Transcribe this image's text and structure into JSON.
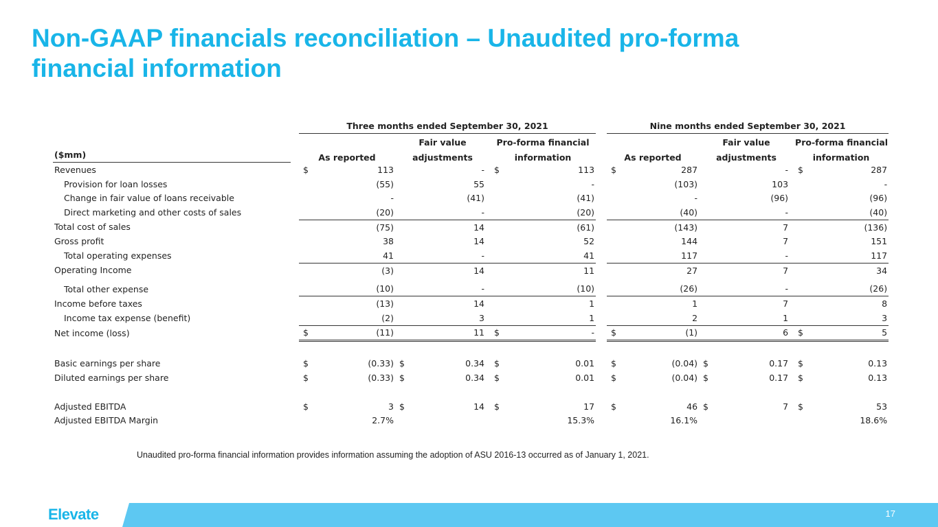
{
  "slide": {
    "title_line1": "Non-GAAP financials reconciliation – Unaudited pro-forma",
    "title_line2": "financial information",
    "note": "Unaudited pro-forma financial information provides information assuming the adoption of ASU 2016-13 occurred as of January 1, 2021.",
    "logo": "Elevate",
    "page_number": "17",
    "colors": {
      "title": "#19b5e8",
      "footer_bar": "#5dc8f2"
    }
  },
  "table": {
    "unit_label": "($mm)",
    "groups": {
      "three_months": "Three months ended September 30, 2021",
      "nine_months": "Nine months ended September 30, 2021"
    },
    "columns": {
      "as_reported": "As reported",
      "fair_value_l1": "Fair value",
      "fair_value_l2": "adjustments",
      "proforma_l1": "Pro-forma financial",
      "proforma_l2": "information"
    },
    "rows": [
      {
        "label": "Revenues",
        "q": [
          "$",
          "113",
          "",
          "-",
          "$",
          "113"
        ],
        "n": [
          "$",
          "287",
          "",
          "-",
          "$",
          "287"
        ]
      },
      {
        "label": "Provision for loan losses",
        "q": [
          "",
          "(55)",
          "",
          "55",
          "",
          "-"
        ],
        "n": [
          "",
          "(103)",
          "",
          "103",
          "",
          "-"
        ]
      },
      {
        "label": "Change in fair value of loans receivable",
        "q": [
          "",
          "-",
          "",
          "(41)",
          "",
          "(41)"
        ],
        "n": [
          "",
          "-",
          "",
          "(96)",
          "",
          "(96)"
        ]
      },
      {
        "label": "Direct marketing and other costs of sales",
        "q": [
          "",
          "(20)",
          "",
          "-",
          "",
          "(20)"
        ],
        "n": [
          "",
          "(40)",
          "",
          "-",
          "",
          "(40)"
        ]
      },
      {
        "label": "Total cost of sales",
        "q": [
          "",
          "(75)",
          "",
          "14",
          "",
          "(61)"
        ],
        "n": [
          "",
          "(143)",
          "",
          "7",
          "",
          "(136)"
        ]
      },
      {
        "label": "Gross profit",
        "q": [
          "",
          "38",
          "",
          "14",
          "",
          "52"
        ],
        "n": [
          "",
          "144",
          "",
          "7",
          "",
          "151"
        ]
      },
      {
        "label": "Total operating expenses",
        "q": [
          "",
          "41",
          "",
          "-",
          "",
          "41"
        ],
        "n": [
          "",
          "117",
          "",
          "-",
          "",
          "117"
        ]
      },
      {
        "label": "Operating Income",
        "q": [
          "",
          "(3)",
          "",
          "14",
          "",
          "11"
        ],
        "n": [
          "",
          "27",
          "",
          "7",
          "",
          "34"
        ]
      },
      {
        "label": "Total other expense",
        "q": [
          "",
          "(10)",
          "",
          "-",
          "",
          "(10)"
        ],
        "n": [
          "",
          "(26)",
          "",
          "-",
          "",
          "(26)"
        ]
      },
      {
        "label": "Income before taxes",
        "q": [
          "",
          "(13)",
          "",
          "14",
          "",
          "1"
        ],
        "n": [
          "",
          "1",
          "",
          "7",
          "",
          "8"
        ]
      },
      {
        "label": "Income tax expense (benefit)",
        "q": [
          "",
          "(2)",
          "",
          "3",
          "",
          "1"
        ],
        "n": [
          "",
          "2",
          "",
          "1",
          "",
          "3"
        ]
      },
      {
        "label": "Net income (loss)",
        "q": [
          "$",
          "(11)",
          "",
          "11",
          "$",
          "-"
        ],
        "n": [
          "$",
          "(1)",
          "",
          "6",
          "$",
          "5"
        ]
      },
      {
        "label": "Basic earnings per share",
        "q": [
          "$",
          "(0.33)",
          "$",
          "0.34",
          "$",
          "0.01"
        ],
        "n": [
          "$",
          "(0.04)",
          "$",
          "0.17",
          "$",
          "0.13"
        ]
      },
      {
        "label": "Diluted earnings per share",
        "q": [
          "$",
          "(0.33)",
          "$",
          "0.34",
          "$",
          "0.01"
        ],
        "n": [
          "$",
          "(0.04)",
          "$",
          "0.17",
          "$",
          "0.13"
        ]
      },
      {
        "label": "Adjusted EBITDA",
        "q": [
          "$",
          "3",
          "$",
          "14",
          "$",
          "17"
        ],
        "n": [
          "$",
          "46",
          "$",
          "7",
          "$",
          "53"
        ]
      },
      {
        "label": "Adjusted EBITDA Margin",
        "q": [
          "",
          "2.7%",
          "",
          "",
          "",
          "15.3%"
        ],
        "n": [
          "",
          "16.1%",
          "",
          "",
          "",
          "18.6%"
        ]
      }
    ]
  }
}
